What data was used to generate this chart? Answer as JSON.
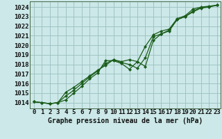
{
  "title": "Graphe pression niveau de la mer (hPa)",
  "bg_color": "#cce8e8",
  "grid_color": "#9abfbf",
  "line_color": "#1a5c1a",
  "x_ticks": [
    0,
    1,
    2,
    3,
    4,
    5,
    6,
    7,
    8,
    9,
    10,
    11,
    12,
    13,
    14,
    15,
    16,
    17,
    18,
    19,
    20,
    21,
    22,
    23
  ],
  "y_ticks": [
    1014,
    1015,
    1016,
    1017,
    1018,
    1019,
    1020,
    1021,
    1022,
    1023,
    1024
  ],
  "ylim": [
    1013.4,
    1024.6
  ],
  "xlim": [
    -0.5,
    23.5
  ],
  "series1": [
    1014.1,
    1014.0,
    1013.9,
    1014.0,
    1015.1,
    1015.6,
    1016.2,
    1016.8,
    1017.4,
    1017.9,
    1018.5,
    1018.3,
    1018.5,
    1018.3,
    1019.9,
    1021.1,
    1021.5,
    1021.7,
    1022.8,
    1023.1,
    1023.8,
    1024.0,
    1024.1,
    1024.2
  ],
  "series2": [
    1014.1,
    1014.0,
    1013.9,
    1014.0,
    1014.3,
    1015.0,
    1015.7,
    1016.5,
    1017.1,
    1018.4,
    1018.4,
    1018.1,
    1017.5,
    1018.3,
    1017.8,
    1020.5,
    1021.2,
    1021.5,
    1022.7,
    1023.0,
    1023.5,
    1023.9,
    1024.0,
    1024.2
  ],
  "series3": [
    1014.1,
    1014.0,
    1013.9,
    1014.0,
    1014.7,
    1015.3,
    1016.0,
    1016.7,
    1017.3,
    1018.1,
    1018.5,
    1018.2,
    1018.0,
    1017.6,
    1018.7,
    1020.9,
    1021.2,
    1021.6,
    1022.7,
    1023.0,
    1023.6,
    1023.95,
    1024.05,
    1024.2
  ],
  "tick_fontsize": 6.5,
  "title_fontsize": 7.0,
  "lw": 0.9,
  "marker_size": 2.2
}
